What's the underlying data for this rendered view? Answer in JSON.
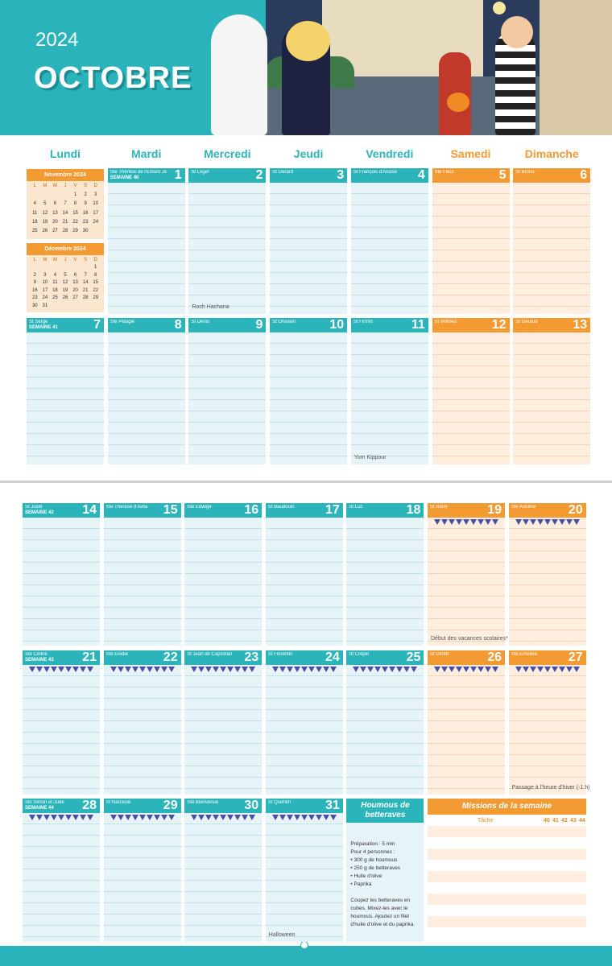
{
  "header": {
    "year": "2024",
    "month": "OCTOBRE"
  },
  "weekdays": [
    "Lundi",
    "Mardi",
    "Mercredi",
    "Jeudi",
    "Vendredi",
    "Samedi",
    "Dimanche"
  ],
  "mini_calendars": [
    {
      "title": "Novembre 2024",
      "weekdays": [
        "L",
        "M",
        "M",
        "J",
        "V",
        "S",
        "D"
      ],
      "weeks": [
        [
          null,
          null,
          null,
          null,
          1,
          2,
          3
        ],
        [
          4,
          5,
          6,
          7,
          8,
          9,
          10
        ],
        [
          11,
          12,
          13,
          14,
          15,
          16,
          17
        ],
        [
          18,
          19,
          20,
          21,
          22,
          23,
          24
        ],
        [
          25,
          26,
          27,
          28,
          29,
          30,
          null
        ]
      ]
    },
    {
      "title": "Décembre 2024",
      "weekdays": [
        "L",
        "M",
        "M",
        "J",
        "V",
        "S",
        "D"
      ],
      "weeks": [
        [
          null,
          null,
          null,
          null,
          null,
          null,
          1
        ],
        [
          2,
          3,
          4,
          5,
          6,
          7,
          8
        ],
        [
          9,
          10,
          11,
          12,
          13,
          14,
          15
        ],
        [
          16,
          17,
          18,
          19,
          20,
          21,
          22
        ],
        [
          23,
          24,
          25,
          26,
          27,
          28,
          29
        ],
        [
          30,
          31,
          null,
          null,
          null,
          null,
          null
        ]
      ]
    }
  ],
  "days": [
    {
      "day": 1,
      "saint": "Ste Thérèse de l'Enfant Jésus",
      "week": "SEMAINE 40"
    },
    {
      "day": 2,
      "saint": "St Léger",
      "note": "Roch Hachana"
    },
    {
      "day": 3,
      "saint": "St Gérard"
    },
    {
      "day": 4,
      "saint": "St François d'Assise"
    },
    {
      "day": 5,
      "saint": "Ste Fleur"
    },
    {
      "day": 6,
      "saint": "St Bruno"
    },
    {
      "day": 7,
      "saint": "St Serge",
      "week": "SEMAINE 41"
    },
    {
      "day": 8,
      "saint": "Ste Pélagie"
    },
    {
      "day": 9,
      "saint": "St Denis"
    },
    {
      "day": 10,
      "saint": "St Ghislain"
    },
    {
      "day": 11,
      "saint": "St Firmin",
      "note": "Yom Kippour"
    },
    {
      "day": 12,
      "saint": "St Wilfried"
    },
    {
      "day": 13,
      "saint": "St Géraud"
    },
    {
      "day": 14,
      "saint": "St Juste",
      "week": "SEMAINE 42"
    },
    {
      "day": 15,
      "saint": "Ste Thérèse d'Avila"
    },
    {
      "day": 16,
      "saint": "Ste Edwige"
    },
    {
      "day": 17,
      "saint": "St Baudouin"
    },
    {
      "day": 18,
      "saint": "St Luc"
    },
    {
      "day": 19,
      "saint": "St René",
      "note": "Début des vacances scolaires*"
    },
    {
      "day": 20,
      "saint": "Ste Adeline"
    },
    {
      "day": 21,
      "saint": "Ste Céline",
      "week": "SEMAINE 43"
    },
    {
      "day": 22,
      "saint": "Ste Élodie"
    },
    {
      "day": 23,
      "saint": "St Jean de Capistran"
    },
    {
      "day": 24,
      "saint": "St Florentin"
    },
    {
      "day": 25,
      "saint": "St Crépin"
    },
    {
      "day": 26,
      "saint": "St Dimitri"
    },
    {
      "day": 27,
      "saint": "Ste Émeline",
      "note": "Passage à l'heure d'hiver (-1 h)"
    },
    {
      "day": 28,
      "saint": "Sts Simon et Jude",
      "week": "SEMAINE 44"
    },
    {
      "day": 29,
      "saint": "St Narcisse"
    },
    {
      "day": 30,
      "saint": "Ste Bienvenue"
    },
    {
      "day": 31,
      "saint": "St Quentin",
      "note": "Halloween"
    }
  ],
  "recipe": {
    "title": "Houmous de betteraves",
    "lines": [
      "Préparation : 5 min",
      "Pour 4 personnes :",
      "• 300 g de houmous",
      "• 250 g de betteraves",
      "• Huile d'olive",
      "• Paprika",
      "",
      "Coupez les betteraves en cubes. Mixez-les avec le houmous. Ajoutez un filet d'huile d'olive et du paprika."
    ]
  },
  "missions": {
    "title": "Missions de la semaine",
    "task_label": "Tâche",
    "weeks": [
      "40",
      "41",
      "42",
      "43",
      "44"
    ]
  }
}
